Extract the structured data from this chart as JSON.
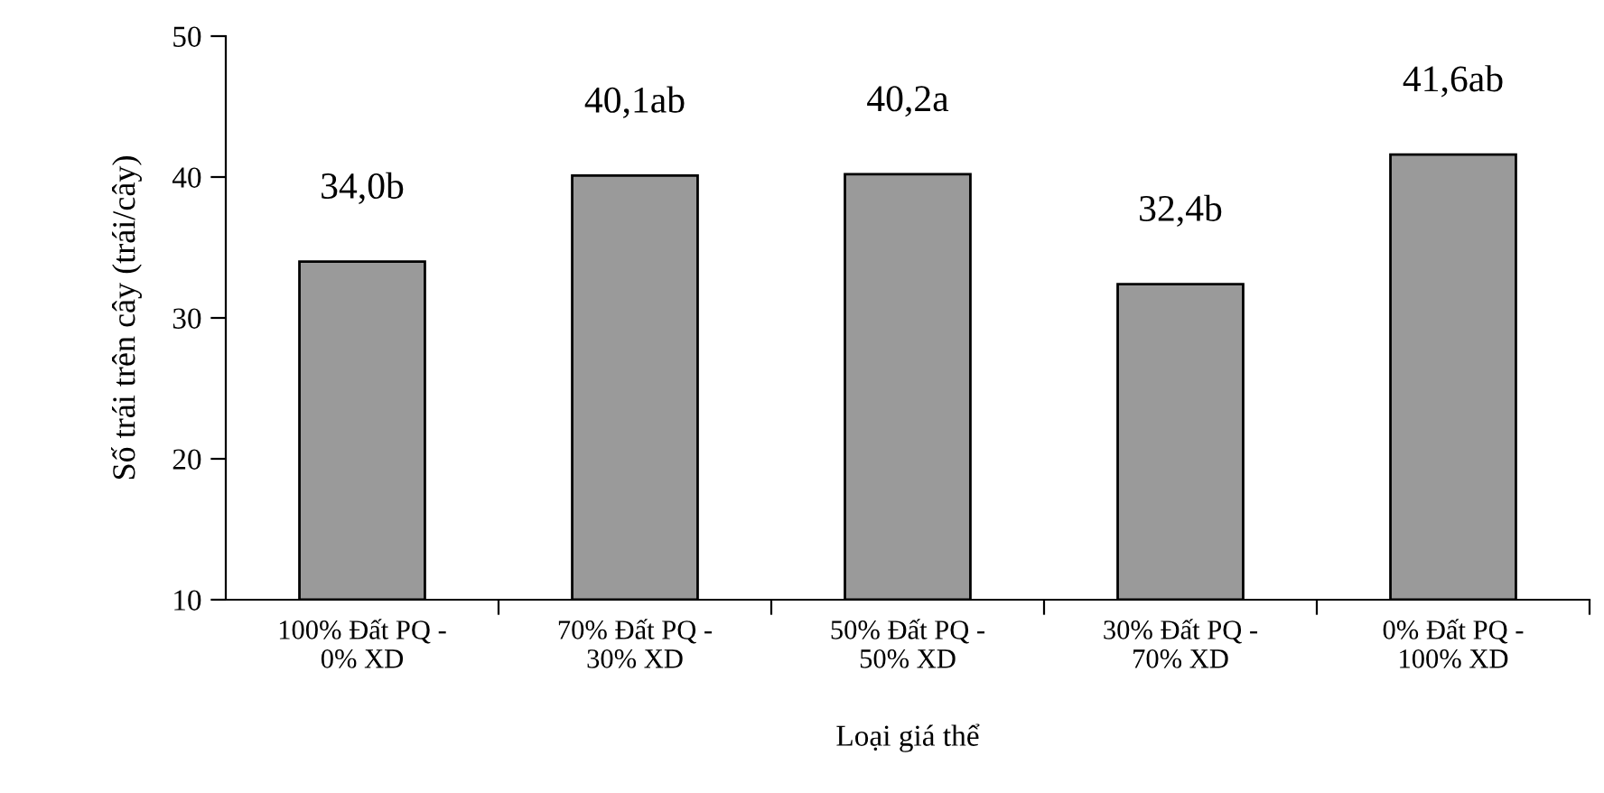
{
  "chart_data": {
    "type": "bar",
    "xlabel": "Loại giá thể",
    "ylabel": "Số trái trên cây (trái/cây)",
    "categories": [
      "100% Đất PQ -\n0% XD",
      "70% Đất PQ -\n30% XD",
      "50% Đất PQ -\n50% XD",
      "30% Đất PQ -\n70% XD",
      "0% Đất PQ -\n100% XD"
    ],
    "values": [
      34.0,
      40.1,
      40.2,
      32.4,
      41.6
    ],
    "value_labels": [
      "34,0b",
      "40,1ab",
      "40,2a",
      "32,4b",
      "41,6ab"
    ],
    "color": "#9a9a9a",
    "ylim": [
      10,
      50
    ],
    "yticks": [
      10,
      20,
      30,
      40,
      50
    ],
    "grid": false,
    "legend": false
  }
}
